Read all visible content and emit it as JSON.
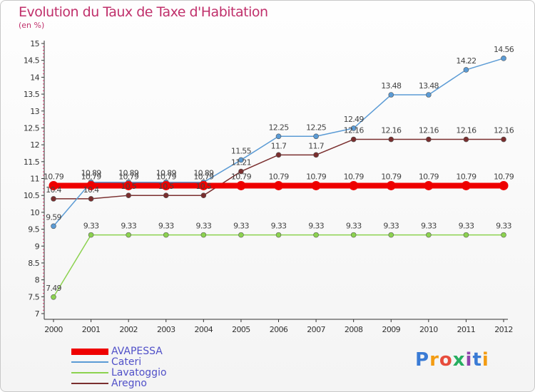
{
  "chart_data": {
    "type": "line",
    "title": "Evolution du Taux de Taxe d'Habitation",
    "subtitle": "(en %)",
    "x": [
      "2000",
      "2001",
      "2002",
      "2003",
      "2004",
      "2005",
      "2006",
      "2007",
      "2008",
      "2009",
      "2010",
      "2011",
      "2012"
    ],
    "ylim": [
      7,
      15
    ],
    "yticks": [
      "7",
      "7.5",
      "8",
      "8.5",
      "9",
      "9.5",
      "10",
      "10.5",
      "11",
      "11.5",
      "12",
      "12.5",
      "13",
      "13.5",
      "14",
      "14.5",
      "15"
    ],
    "grid": false,
    "legend_position": "bottom-left",
    "series": [
      {
        "name": "AVAPESSA",
        "color": "#ee0000",
        "values": [
          10.79,
          10.79,
          10.79,
          10.79,
          10.79,
          10.79,
          10.79,
          10.79,
          10.79,
          10.79,
          10.79,
          10.79,
          10.79
        ],
        "labels": [
          "10.79",
          "10.79",
          "10.79",
          "10.79",
          "10.79",
          "10.79",
          "10.79",
          "10.79",
          "10.79",
          "10.79",
          "10.79",
          "10.79",
          "10.79"
        ]
      },
      {
        "name": "Cateri",
        "color": "#5b9bd5",
        "values": [
          9.59,
          10.89,
          10.89,
          10.89,
          10.89,
          11.55,
          12.25,
          12.25,
          12.49,
          13.48,
          13.48,
          14.22,
          14.56
        ],
        "labels": [
          "9.59",
          "10.89",
          "10.89",
          "10.89",
          "10.89",
          "11.55",
          "12.25",
          "12.25",
          "12.49",
          "13.48",
          "13.48",
          "14.22",
          "14.56"
        ]
      },
      {
        "name": "Lavatoggio",
        "color": "#8cd24f",
        "values": [
          7.49,
          9.33,
          9.33,
          9.33,
          9.33,
          9.33,
          9.33,
          9.33,
          9.33,
          9.33,
          9.33,
          9.33,
          9.33
        ],
        "labels": [
          "7.49",
          "9.33",
          "9.33",
          "9.33",
          "9.33",
          "9.33",
          "9.33",
          "9.33",
          "9.33",
          "9.33",
          "9.33",
          "9.33",
          "9.33"
        ]
      },
      {
        "name": "Aregno",
        "color": "#7a2e2e",
        "values": [
          10.4,
          10.4,
          10.5,
          10.5,
          10.5,
          11.21,
          11.7,
          11.7,
          12.16,
          12.16,
          12.16,
          12.16,
          12.16
        ],
        "labels": [
          "10.4",
          "10.4",
          "10.5",
          "10.5",
          "10.5",
          "11.21",
          "11.7",
          "11.7",
          "12.16",
          "12.16",
          "12.16",
          "12.16",
          "12.16"
        ]
      }
    ]
  },
  "legend": {
    "items": [
      {
        "label": "AVAPESSA",
        "color": "#ee0000"
      },
      {
        "label": "Cateri",
        "color": "#5b9bd5"
      },
      {
        "label": "Lavatoggio",
        "color": "#8cd24f"
      },
      {
        "label": "Aregno",
        "color": "#7a2e2e"
      }
    ]
  },
  "logo": {
    "text": "Proxiti",
    "colors": [
      "#3a7bd5",
      "#f39c12",
      "#e74c3c",
      "#27ae60",
      "#8e44ad",
      "#3a7bd5",
      "#f39c12"
    ]
  }
}
